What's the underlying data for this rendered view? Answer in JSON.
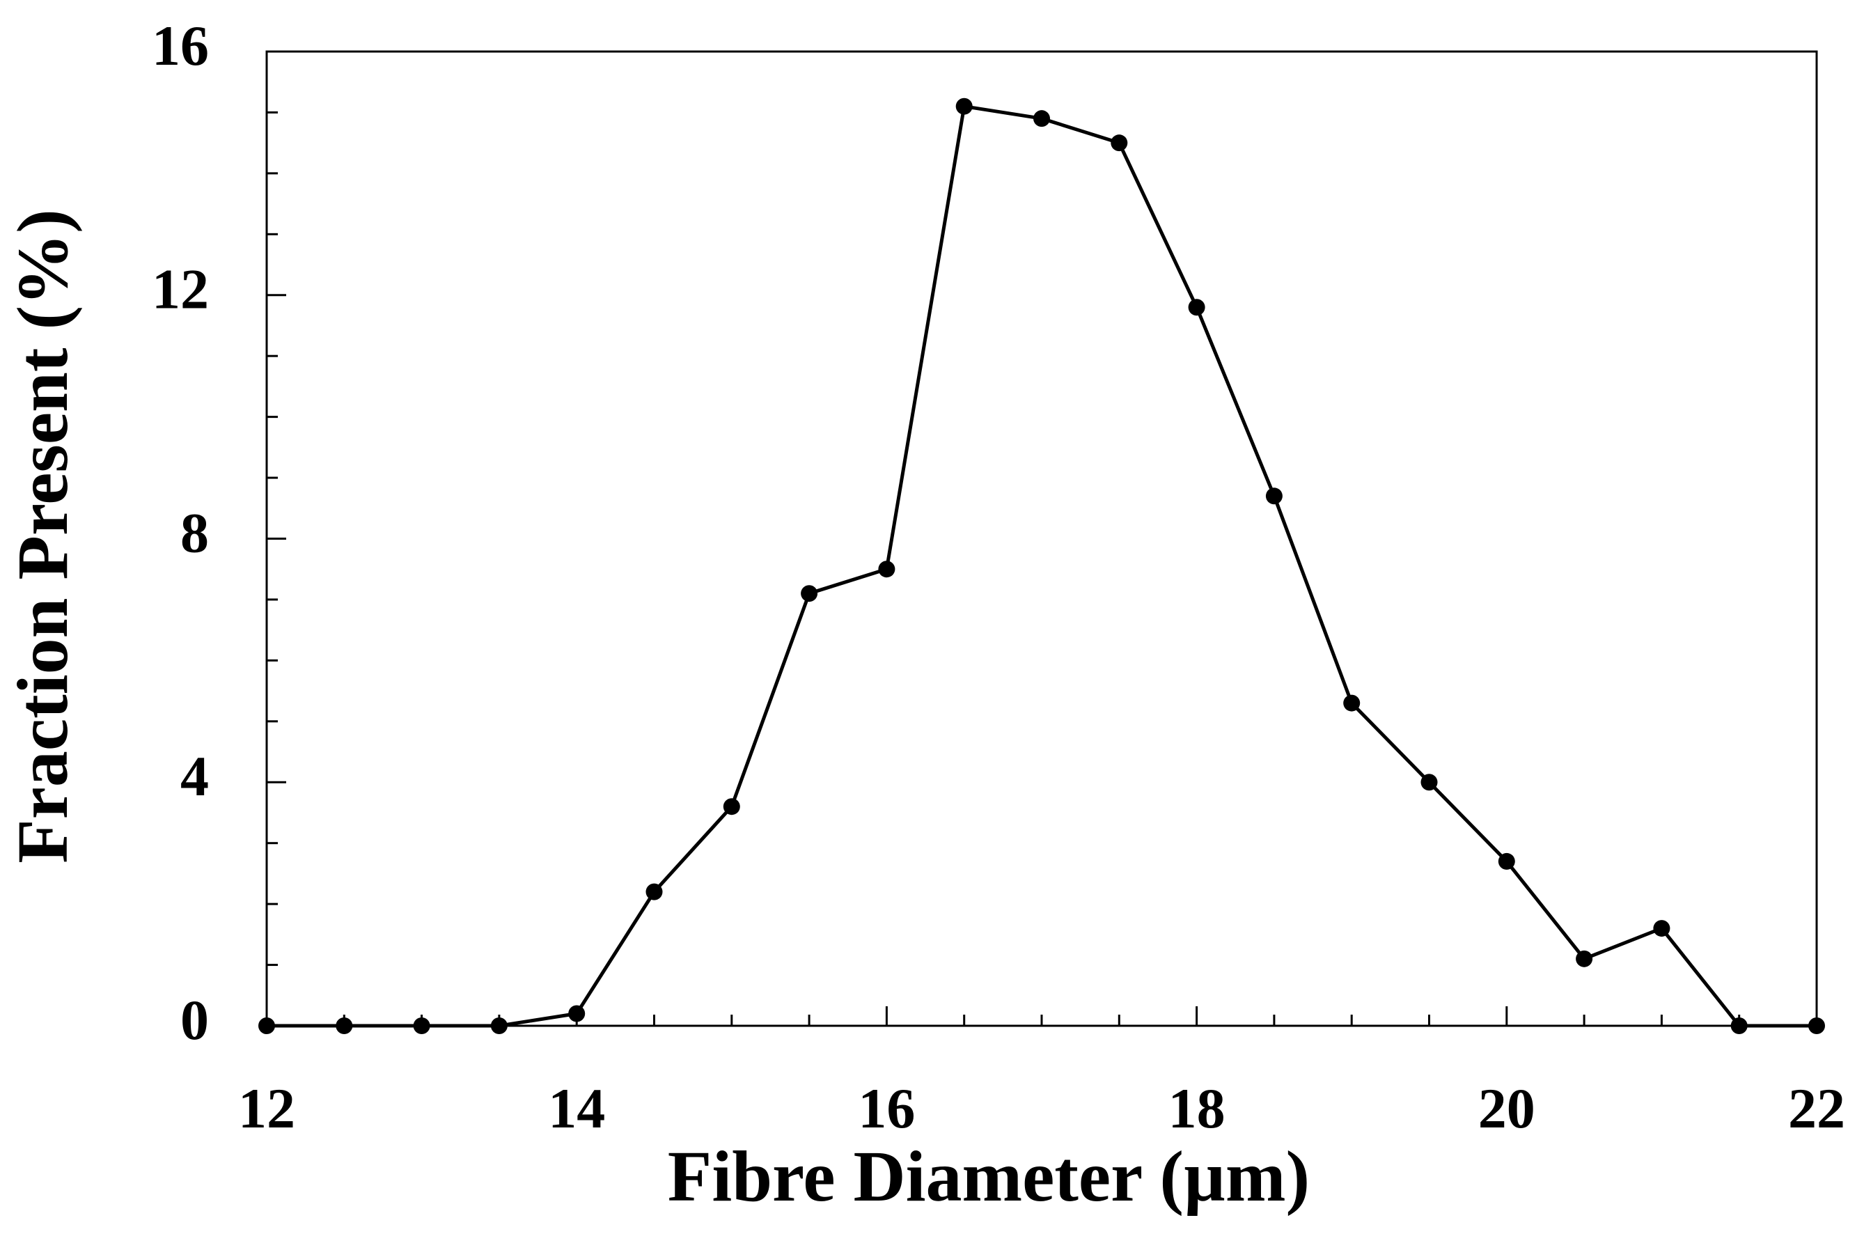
{
  "chart_data": {
    "type": "line",
    "x_label": "Fibre Diameter (µm)",
    "y_label": "Fraction Present (%)",
    "x": [
      12,
      12.5,
      13,
      13.5,
      14,
      14.5,
      15,
      15.5,
      16,
      16.5,
      17,
      17.5,
      18,
      18.5,
      19,
      19.5,
      20,
      20.5,
      21,
      21.5,
      22
    ],
    "series": [
      {
        "color": "#000000",
        "values": [
          0,
          0,
          0,
          0,
          0.2,
          2.2,
          3.6,
          7.1,
          7.5,
          15.1,
          14.9,
          14.5,
          11.8,
          8.7,
          5.3,
          4.0,
          2.7,
          1.1,
          1.6,
          0,
          0
        ]
      }
    ],
    "xlim": [
      12,
      22
    ],
    "xticks": [
      12,
      14,
      16,
      18,
      20,
      22
    ],
    "xminorticks": [
      12.5,
      13,
      13.5,
      14.5,
      15,
      15.5,
      16.5,
      17,
      17.5,
      18.5,
      19,
      19.5,
      20.5,
      21,
      21.5
    ],
    "ylim": [
      0,
      16
    ],
    "yticks": [
      0,
      4,
      8,
      12,
      16
    ],
    "yminorticks": [
      1,
      2,
      3,
      5,
      6,
      7,
      9,
      10,
      11,
      13,
      14,
      15
    ],
    "grid": false
  }
}
